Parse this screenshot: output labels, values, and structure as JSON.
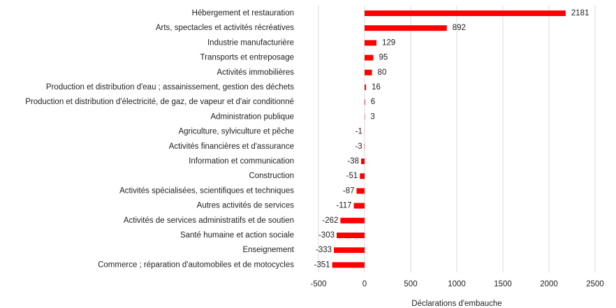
{
  "chart_data": {
    "type": "barh",
    "xlabel": "Déclarations d'embauche",
    "categories": [
      "Hébergement et restauration",
      "Arts, spectacles et activités récréatives",
      "Industrie manufacturière",
      "Transports et entreposage",
      "Activités immobilières",
      "Production et distribution d'eau ; assainissement, gestion des déchets",
      "Production et distribution d'électricité, de gaz, de vapeur et d'air conditionné",
      "Administration publique",
      "Agriculture, sylviculture et pêche",
      "Activités financières et d'assurance",
      "Information et communication",
      "Construction",
      "Activités spécialisées, scientifiques et techniques",
      "Autres activités de services",
      "Activités de services administratifs et de soutien",
      "Santé humaine et action sociale",
      "Enseignement",
      "Commerce ; réparation d'automobiles et de motocycles"
    ],
    "values": [
      2181,
      892,
      129,
      95,
      80,
      16,
      6,
      3,
      -1,
      -3,
      -38,
      -51,
      -87,
      -117,
      -262,
      -303,
      -333,
      -351
    ],
    "color": "#ff0000",
    "xlim": [
      -500,
      2500
    ],
    "xticks": [
      -500,
      0,
      500,
      1000,
      1500,
      2000,
      2500
    ],
    "grid": true
  }
}
